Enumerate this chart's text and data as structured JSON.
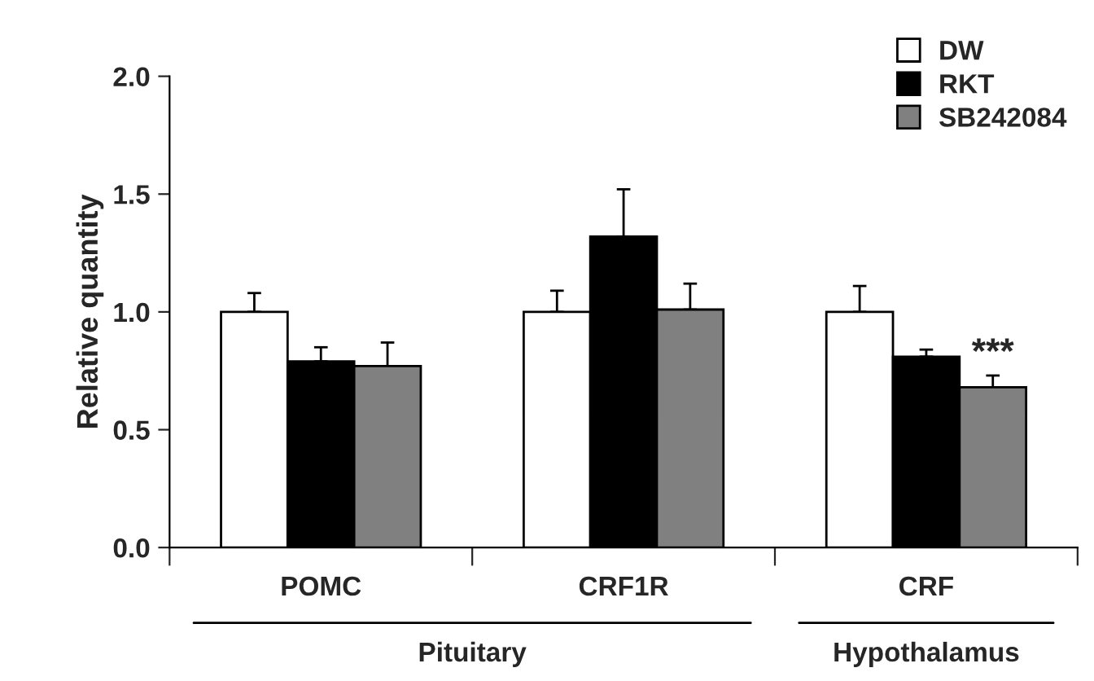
{
  "chart_data": {
    "type": "bar",
    "ylabel": "Relative quantity",
    "categories": [
      "POMC",
      "CRF1R",
      "CRF"
    ],
    "series": [
      {
        "name": "DW",
        "color": "#ffffff",
        "values": [
          1.0,
          1.0,
          1.0
        ],
        "errors": [
          [
            1.0,
            1.08
          ],
          [
            1.0,
            1.09
          ],
          [
            1.0,
            1.11
          ]
        ]
      },
      {
        "name": "RKT",
        "color": "#000000",
        "values": [
          0.79,
          1.32,
          0.81
        ],
        "errors": [
          [
            0.79,
            0.85
          ],
          [
            1.32,
            1.52
          ],
          [
            0.81,
            0.84
          ]
        ]
      },
      {
        "name": "SB242084",
        "color": "#808080",
        "values": [
          0.77,
          1.01,
          0.68
        ],
        "errors": [
          [
            0.77,
            0.87
          ],
          [
            1.01,
            1.12
          ],
          [
            0.68,
            0.73
          ]
        ]
      }
    ],
    "ylim": [
      0,
      2.0
    ],
    "yticks": [
      {
        "value": 0,
        "label": "0.0"
      },
      {
        "value": 0.5,
        "label": "0.5"
      },
      {
        "value": 1.0,
        "label": "1.0"
      },
      {
        "value": 1.5,
        "label": "1.5"
      },
      {
        "value": 2.0,
        "label": "2.0"
      }
    ],
    "grid": false,
    "legend": "top right",
    "annotations": [
      "***",
      "Pituitary",
      "Hypothalamus"
    ]
  }
}
